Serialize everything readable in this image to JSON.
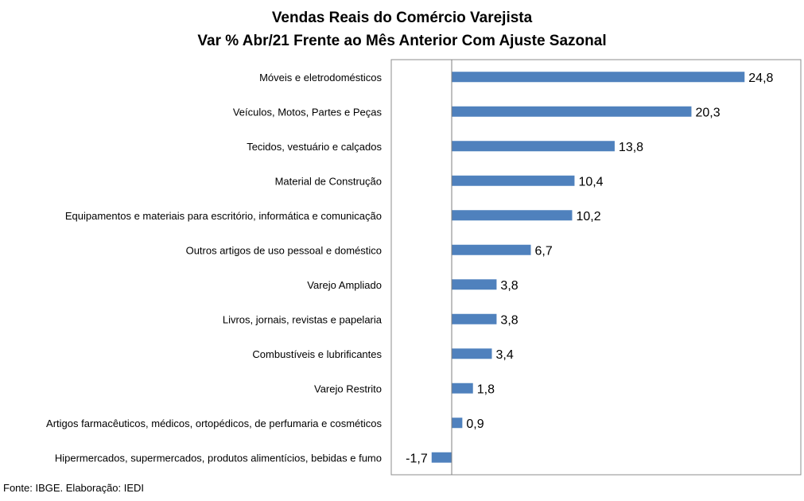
{
  "chart_data": {
    "type": "bar",
    "orientation": "horizontal",
    "title": "Vendas Reais do Comércio Varejista",
    "subtitle": "Var % Abr/21 Frente ao Mês Anterior Com Ajuste Sazonal",
    "categories": [
      "Móveis e eletrodomésticos",
      "Veículos, Motos, Partes e Peças",
      "Tecidos, vestuário e calçados",
      "Material de Construção",
      "Equipamentos e materiais para escritório, informática e comunicação",
      "Outros artigos de uso pessoal e doméstico",
      "Varejo Ampliado",
      "Livros, jornais, revistas e papelaria",
      "Combustíveis e lubrificantes",
      "Varejo Restrito",
      "Artigos farmacêuticos, médicos, ortopédicos, de perfumaria e cosméticos",
      "Hipermercados, supermercados, produtos alimentícios, bebidas e fumo"
    ],
    "values": [
      24.8,
      20.3,
      13.8,
      10.4,
      10.2,
      6.7,
      3.8,
      3.8,
      3.4,
      1.8,
      0.9,
      -1.7
    ],
    "value_labels": [
      "24,8",
      "20,3",
      "13,8",
      "10,4",
      "10,2",
      "6,7",
      "3,8",
      "3,8",
      "3,4",
      "1,8",
      "0,9",
      "-1,7"
    ],
    "bar_color": "#4F81BD",
    "grid": false,
    "legend": "none"
  },
  "footer": {
    "source": "Fonte: IBGE. Elaboração: IEDI"
  }
}
